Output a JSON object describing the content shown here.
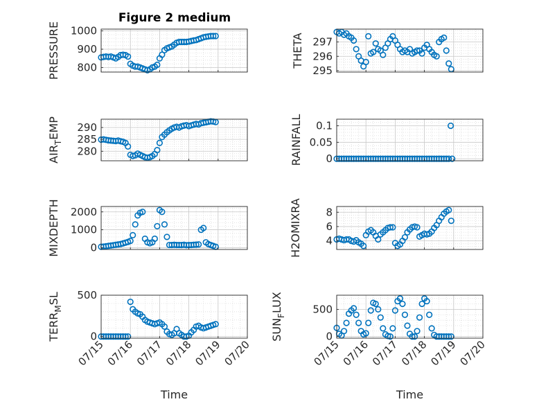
{
  "figure": {
    "title": "Figure 2 medium",
    "marker_color": "#0072BD"
  },
  "chart_data": [
    {
      "type": "scatter",
      "ylabel": "PRESSURE",
      "ylim": [
        775,
        1010
      ],
      "yticks": [
        800,
        900,
        1000
      ],
      "yticklabels": [
        "800",
        "900",
        "1000"
      ],
      "xlim": [
        0,
        5
      ],
      "x": [
        0,
        0.083,
        0.167,
        0.25,
        0.333,
        0.417,
        0.5,
        0.583,
        0.667,
        0.75,
        0.833,
        0.917,
        1,
        1.083,
        1.167,
        1.25,
        1.333,
        1.417,
        1.5,
        1.583,
        1.667,
        1.75,
        1.833,
        1.917,
        2,
        2.083,
        2.167,
        2.25,
        2.333,
        2.417,
        2.5,
        2.583,
        2.667,
        2.75,
        2.833,
        2.917,
        3,
        3.083,
        3.167,
        3.25,
        3.333,
        3.417,
        3.5,
        3.583,
        3.667,
        3.75,
        3.833,
        3.917
      ],
      "y": [
        855,
        858,
        860,
        858,
        860,
        855,
        850,
        858,
        868,
        870,
        868,
        860,
        820,
        810,
        805,
        805,
        800,
        795,
        790,
        785,
        790,
        800,
        805,
        815,
        850,
        870,
        895,
        905,
        910,
        915,
        925,
        935,
        940,
        940,
        940,
        940,
        942,
        945,
        948,
        950,
        955,
        960,
        965,
        968,
        970,
        972,
        972,
        972
      ]
    },
    {
      "type": "scatter",
      "ylabel": "THETA",
      "ylim": [
        294.9,
        297.9
      ],
      "yticks": [
        295,
        296,
        297
      ],
      "yticklabels": [
        "295",
        "296",
        "297"
      ],
      "xlim": [
        0,
        5
      ],
      "x": [
        0,
        0.083,
        0.167,
        0.25,
        0.333,
        0.417,
        0.5,
        0.583,
        0.667,
        0.75,
        0.833,
        0.917,
        1,
        1.083,
        1.167,
        1.25,
        1.333,
        1.417,
        1.5,
        1.583,
        1.667,
        1.75,
        1.833,
        1.917,
        2,
        2.083,
        2.167,
        2.25,
        2.333,
        2.417,
        2.5,
        2.583,
        2.667,
        2.75,
        2.833,
        2.917,
        3,
        3.083,
        3.167,
        3.25,
        3.333,
        3.417,
        3.5,
        3.583,
        3.667,
        3.75,
        3.833,
        3.917
      ],
      "y": [
        297.7,
        297.6,
        297.7,
        297.5,
        297.6,
        297.4,
        297.3,
        297.1,
        296.5,
        296.0,
        295.7,
        295.3,
        295.6,
        297.4,
        296.2,
        296.3,
        296.9,
        296.5,
        296.4,
        296.1,
        296.6,
        296.9,
        297.2,
        297.4,
        297.1,
        296.8,
        296.5,
        296.3,
        296.4,
        296.3,
        296.5,
        296.2,
        296.3,
        296.4,
        296.4,
        296.2,
        296.6,
        296.8,
        296.5,
        296.3,
        296.1,
        296.0,
        297.0,
        297.2,
        297.3,
        296.4,
        295.5,
        295.1
      ]
    },
    {
      "type": "scatter",
      "ylabel": "AIR_TEMP",
      "ylim": [
        276,
        293.5
      ],
      "yticks": [
        280,
        285,
        290
      ],
      "yticklabels": [
        "280",
        "285",
        "290"
      ],
      "xlim": [
        0,
        5
      ],
      "x": [
        0,
        0.083,
        0.167,
        0.25,
        0.333,
        0.417,
        0.5,
        0.583,
        0.667,
        0.75,
        0.833,
        0.917,
        1,
        1.083,
        1.167,
        1.25,
        1.333,
        1.417,
        1.5,
        1.583,
        1.667,
        1.75,
        1.833,
        1.917,
        2,
        2.083,
        2.167,
        2.25,
        2.333,
        2.417,
        2.5,
        2.583,
        2.667,
        2.75,
        2.833,
        2.917,
        3,
        3.083,
        3.167,
        3.25,
        3.333,
        3.417,
        3.5,
        3.583,
        3.667,
        3.75,
        3.833,
        3.917
      ],
      "y": [
        284.9,
        285.0,
        284.8,
        284.6,
        284.5,
        284.4,
        284.3,
        284.5,
        284.2,
        284.0,
        283.5,
        282.0,
        278.5,
        278.0,
        278.3,
        279.0,
        278.5,
        278.0,
        277.5,
        277.3,
        277.5,
        278.0,
        278.8,
        280.5,
        283.5,
        286.0,
        287.0,
        288.0,
        288.8,
        289.5,
        290.0,
        290.3,
        290.0,
        290.5,
        290.8,
        291.0,
        290.6,
        290.9,
        291.2,
        291.5,
        291.3,
        291.8,
        292.0,
        292.2,
        292.4,
        292.6,
        292.5,
        292.3
      ]
    },
    {
      "type": "scatter",
      "ylabel": "RAINFALL",
      "ylim": [
        -0.006,
        0.12
      ],
      "yticks": [
        0,
        0.05,
        0.1
      ],
      "yticklabels": [
        "0",
        "0.05",
        "0.1"
      ],
      "xlim": [
        0,
        5
      ],
      "x": [
        0,
        0.083,
        0.167,
        0.25,
        0.333,
        0.417,
        0.5,
        0.583,
        0.667,
        0.75,
        0.833,
        0.917,
        1,
        1.083,
        1.167,
        1.25,
        1.333,
        1.417,
        1.5,
        1.583,
        1.667,
        1.75,
        1.833,
        1.917,
        2,
        2.083,
        2.167,
        2.25,
        2.333,
        2.417,
        2.5,
        2.583,
        2.667,
        2.75,
        2.833,
        2.917,
        3,
        3.083,
        3.167,
        3.25,
        3.333,
        3.417,
        3.5,
        3.583,
        3.667,
        3.75,
        3.833,
        3.9,
        3.95
      ],
      "y": [
        0,
        0,
        0,
        0,
        0,
        0,
        0,
        0,
        0,
        0,
        0,
        0,
        0,
        0,
        0,
        0,
        0,
        0,
        0,
        0,
        0,
        0,
        0,
        0,
        0,
        0,
        0,
        0,
        0,
        0,
        0,
        0,
        0,
        0,
        0,
        0,
        0,
        0,
        0,
        0,
        0,
        0,
        0,
        0,
        0,
        0,
        0,
        0.1,
        0
      ]
    },
    {
      "type": "scatter",
      "ylabel": "MIXDEPTH",
      "ylim": [
        -100,
        2300
      ],
      "yticks": [
        0,
        1000,
        2000
      ],
      "yticklabels": [
        "0",
        "1000",
        "2000"
      ],
      "xlim": [
        0,
        5
      ],
      "x": [
        0,
        0.083,
        0.167,
        0.25,
        0.333,
        0.417,
        0.5,
        0.583,
        0.667,
        0.75,
        0.833,
        0.917,
        1,
        1.083,
        1.167,
        1.25,
        1.333,
        1.417,
        1.5,
        1.583,
        1.667,
        1.75,
        1.833,
        1.917,
        2,
        2.083,
        2.167,
        2.25,
        2.333,
        2.417,
        2.5,
        2.583,
        2.667,
        2.75,
        2.833,
        2.917,
        3,
        3.083,
        3.167,
        3.25,
        3.333,
        3.417,
        3.5,
        3.583,
        3.667,
        3.75,
        3.833,
        3.917
      ],
      "y": [
        50,
        60,
        80,
        100,
        120,
        140,
        160,
        180,
        200,
        240,
        280,
        320,
        380,
        700,
        1300,
        1800,
        1950,
        2000,
        500,
        300,
        250,
        300,
        500,
        1200,
        2100,
        2000,
        1300,
        600,
        150,
        150,
        160,
        150,
        150,
        150,
        160,
        140,
        150,
        150,
        160,
        170,
        180,
        1000,
        1100,
        300,
        200,
        150,
        100,
        50
      ]
    },
    {
      "type": "scatter",
      "ylabel": "H2OMIXRA",
      "ylim": [
        2.8,
        8.8
      ],
      "yticks": [
        4,
        6,
        8
      ],
      "yticklabels": [
        "4",
        "6",
        "8"
      ],
      "xlim": [
        0,
        5
      ],
      "x": [
        0,
        0.083,
        0.167,
        0.25,
        0.333,
        0.417,
        0.5,
        0.583,
        0.667,
        0.75,
        0.833,
        0.917,
        1,
        1.083,
        1.167,
        1.25,
        1.333,
        1.417,
        1.5,
        1.583,
        1.667,
        1.75,
        1.833,
        1.917,
        2,
        2.083,
        2.167,
        2.25,
        2.333,
        2.417,
        2.5,
        2.583,
        2.667,
        2.75,
        2.833,
        2.917,
        3,
        3.083,
        3.167,
        3.25,
        3.333,
        3.417,
        3.5,
        3.583,
        3.667,
        3.75,
        3.833,
        3.917
      ],
      "y": [
        4.2,
        4.3,
        4.2,
        4.1,
        4.2,
        4.2,
        4.0,
        3.9,
        4.1,
        3.8,
        3.6,
        3.3,
        4.8,
        5.3,
        5.5,
        5.2,
        4.7,
        4.2,
        4.9,
        5.2,
        5.5,
        5.8,
        5.9,
        5.9,
        3.7,
        3.3,
        3.5,
        4.0,
        4.5,
        5.2,
        5.6,
        5.9,
        6.0,
        5.9,
        4.6,
        4.8,
        5.0,
        4.9,
        5.0,
        5.3,
        5.8,
        6.2,
        6.8,
        7.3,
        7.8,
        8.1,
        8.3,
        6.8
      ]
    },
    {
      "type": "scatter",
      "ylabel": "TERR_MSL",
      "ylim": [
        -20,
        500
      ],
      "yticks": [
        0,
        500
      ],
      "yticklabels": [
        "0",
        "500"
      ],
      "xlim": [
        0,
        5
      ],
      "x": [
        0,
        0.083,
        0.167,
        0.25,
        0.333,
        0.417,
        0.5,
        0.583,
        0.667,
        0.75,
        0.833,
        0.917,
        1,
        1.083,
        1.167,
        1.25,
        1.333,
        1.417,
        1.5,
        1.583,
        1.667,
        1.75,
        1.833,
        1.917,
        2,
        2.083,
        2.167,
        2.25,
        2.333,
        2.417,
        2.5,
        2.583,
        2.667,
        2.75,
        2.833,
        2.917,
        3,
        3.083,
        3.167,
        3.25,
        3.333,
        3.417,
        3.5,
        3.583,
        3.667,
        3.75,
        3.833,
        3.917
      ],
      "y": [
        0,
        0,
        0,
        0,
        0,
        0,
        0,
        0,
        0,
        0,
        0,
        0,
        420,
        330,
        300,
        280,
        270,
        240,
        200,
        180,
        170,
        160,
        150,
        160,
        170,
        150,
        120,
        60,
        30,
        20,
        40,
        90,
        40,
        20,
        0,
        0,
        10,
        50,
        80,
        120,
        130,
        110,
        100,
        110,
        120,
        130,
        140,
        150
      ]
    },
    {
      "type": "scatter",
      "ylabel": "SUN_FLUX",
      "ylim": [
        -30,
        760
      ],
      "yticks": [
        0,
        500
      ],
      "yticklabels": [
        "0",
        "500"
      ],
      "xlim": [
        0,
        5
      ],
      "x": [
        0,
        0.083,
        0.167,
        0.25,
        0.333,
        0.417,
        0.5,
        0.583,
        0.667,
        0.75,
        0.833,
        0.917,
        1,
        1.083,
        1.167,
        1.25,
        1.333,
        1.417,
        1.5,
        1.583,
        1.667,
        1.75,
        1.833,
        1.917,
        2,
        2.083,
        2.167,
        2.25,
        2.333,
        2.417,
        2.5,
        2.583,
        2.667,
        2.75,
        2.833,
        2.917,
        3,
        3.083,
        3.167,
        3.25,
        3.333,
        3.417,
        3.5,
        3.583,
        3.667,
        3.75,
        3.833,
        3.917
      ],
      "y": [
        160,
        50,
        20,
        100,
        250,
        420,
        480,
        520,
        400,
        250,
        100,
        40,
        60,
        250,
        480,
        620,
        600,
        500,
        350,
        150,
        40,
        10,
        0,
        150,
        480,
        650,
        700,
        600,
        400,
        200,
        50,
        0,
        0,
        100,
        350,
        600,
        700,
        650,
        400,
        150,
        30,
        0,
        0,
        0,
        0,
        0,
        0,
        0
      ]
    }
  ],
  "x_axis": {
    "ticks": [
      0,
      1,
      2,
      3,
      4,
      5
    ],
    "ticklabels": [
      "07/15",
      "07/16",
      "07/17",
      "07/18",
      "07/19",
      "07/20"
    ],
    "xlabel": "Time"
  }
}
